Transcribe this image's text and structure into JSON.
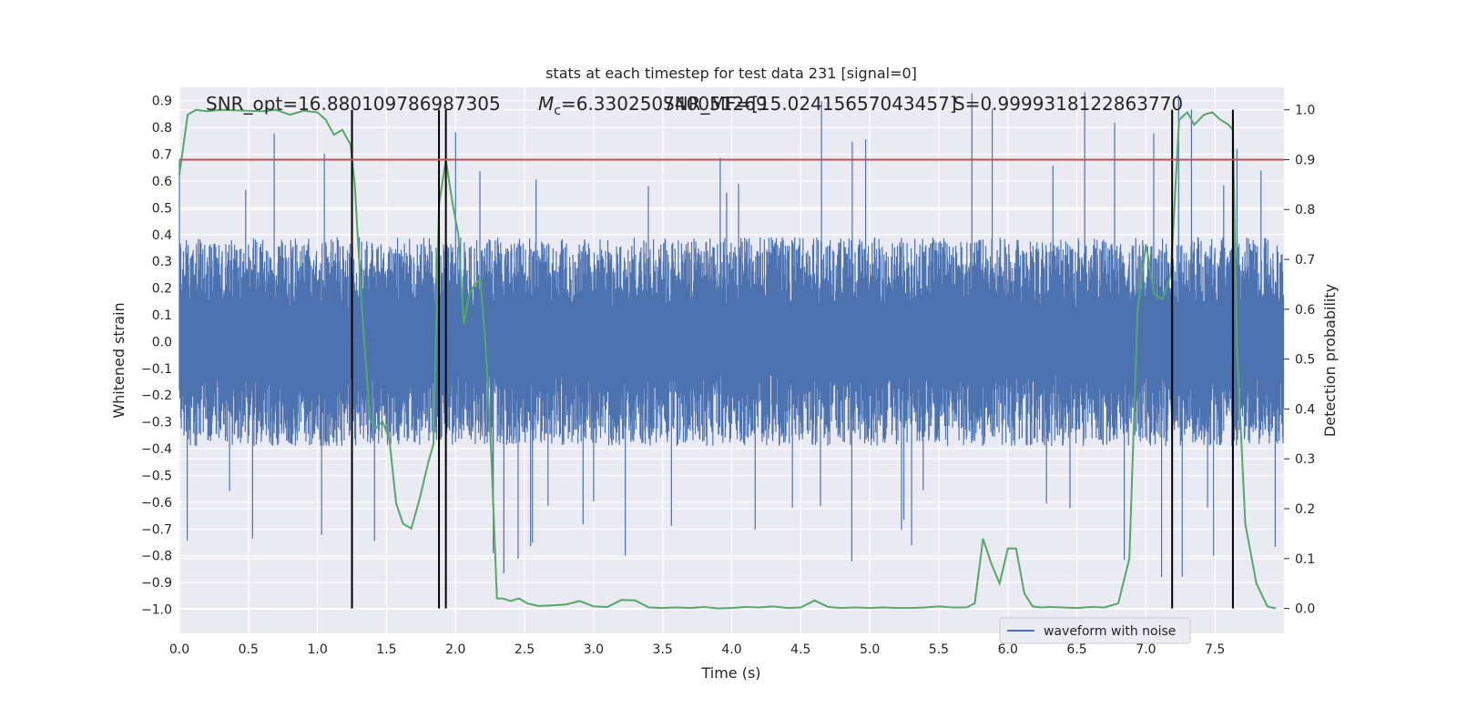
{
  "chart_data": {
    "type": "line",
    "title": "stats at each timestep for test data 231 [signal=0]",
    "xlabel": "Time (s)",
    "ylabel_left": "Whitened strain",
    "ylabel_right": "Detection probability",
    "xlim": [
      0,
      8
    ],
    "ylim_left": [
      -1.09,
      0.95
    ],
    "ylim_right": [
      -0.05,
      1.045
    ],
    "x_ticks": [
      0.0,
      0.5,
      1.0,
      1.5,
      2.0,
      2.5,
      3.0,
      3.5,
      4.0,
      4.5,
      5.0,
      5.5,
      6.0,
      6.5,
      7.0,
      7.5
    ],
    "x_tick_labels": [
      "0.0",
      "0.5",
      "1.0",
      "1.5",
      "2.0",
      "2.5",
      "3.0",
      "3.5",
      "4.0",
      "4.5",
      "5.0",
      "5.5",
      "6.0",
      "6.5",
      "7.0",
      "7.5"
    ],
    "y_left_ticks": [
      0.9,
      0.8,
      0.7,
      0.6,
      0.5,
      0.4,
      0.3,
      0.2,
      0.1,
      0.0,
      -0.1,
      -0.2,
      -0.3,
      -0.4,
      -0.5,
      -0.6,
      -0.7,
      -0.8,
      -0.9,
      -1.0
    ],
    "y_left_tick_labels": [
      "0.9",
      "0.8",
      "0.7",
      "0.6",
      "0.5",
      "0.4",
      "0.3",
      "0.2",
      "0.1",
      "0.0",
      "−0.1",
      "−0.2",
      "−0.3",
      "−0.4",
      "−0.5",
      "−0.6",
      "−0.7",
      "−0.8",
      "−0.9",
      "−1.0"
    ],
    "y_right_ticks": [
      1.0,
      0.9,
      0.8,
      0.7,
      0.6,
      0.5,
      0.4,
      0.3,
      0.2,
      0.1,
      0.0
    ],
    "y_right_tick_labels": [
      "1.0",
      "0.9",
      "0.8",
      "0.7",
      "0.6",
      "0.5",
      "0.4",
      "0.3",
      "0.2",
      "0.1",
      "0.0"
    ],
    "grid": true,
    "threshold": 0.9,
    "vertical_lines": [
      1.25,
      1.88,
      1.93,
      7.19,
      7.63
    ],
    "annotations": [
      {
        "text": "SNR_opt=16.880109786987305"
      },
      {
        "text": "Mc=6.330250740051269",
        "math_prefix": "M",
        "math_sub": "c",
        "rest": "=6.330250740051269"
      },
      {
        "text": "SNR_MF=[15.02415657043457]"
      },
      {
        "text": "S=0.9999318122863770"
      }
    ],
    "series": [
      {
        "name": "waveform with noise",
        "color": "#4c72b0",
        "kind": "noise",
        "duration": 8.0,
        "envelope": 0.3,
        "spike_extent": 0.95
      },
      {
        "color": "#55a868",
        "x": [
          0.0,
          0.06,
          0.12,
          0.2,
          0.3,
          0.4,
          0.5,
          0.6,
          0.7,
          0.8,
          0.9,
          1.0,
          1.06,
          1.12,
          1.18,
          1.24,
          1.27,
          1.32,
          1.38,
          1.42,
          1.47,
          1.52,
          1.57,
          1.62,
          1.68,
          1.74,
          1.8,
          1.84,
          1.88,
          1.93,
          1.98,
          2.02,
          2.06,
          2.1,
          2.14,
          2.18,
          2.22,
          2.26,
          2.3,
          2.34,
          2.4,
          2.46,
          2.52,
          2.6,
          2.7,
          2.8,
          2.9,
          3.0,
          3.1,
          3.2,
          3.3,
          3.4,
          3.5,
          3.6,
          3.7,
          3.8,
          3.9,
          4.0,
          4.1,
          4.2,
          4.3,
          4.4,
          4.5,
          4.6,
          4.7,
          4.8,
          4.9,
          5.0,
          5.1,
          5.2,
          5.3,
          5.4,
          5.5,
          5.6,
          5.7,
          5.76,
          5.82,
          5.88,
          5.94,
          6.0,
          6.06,
          6.12,
          6.18,
          6.24,
          6.3,
          6.4,
          6.5,
          6.6,
          6.7,
          6.8,
          6.88,
          6.94,
          7.0,
          7.06,
          7.12,
          7.18,
          7.24,
          7.3,
          7.35,
          7.42,
          7.48,
          7.54,
          7.6,
          7.63,
          7.66,
          7.72,
          7.8,
          7.88,
          7.94
        ],
        "values": [
          0.87,
          0.99,
          1.0,
          0.997,
          1.0,
          0.999,
          0.998,
          0.997,
          1.0,
          0.99,
          0.998,
          0.995,
          0.98,
          0.95,
          0.96,
          0.93,
          0.85,
          0.61,
          0.38,
          0.36,
          0.375,
          0.34,
          0.21,
          0.17,
          0.16,
          0.22,
          0.29,
          0.33,
          0.81,
          0.9,
          0.81,
          0.75,
          0.57,
          0.63,
          0.65,
          0.66,
          0.52,
          0.3,
          0.02,
          0.02,
          0.015,
          0.02,
          0.01,
          0.005,
          0.006,
          0.008,
          0.015,
          0.004,
          0.003,
          0.017,
          0.016,
          0.002,
          0.001,
          0.002,
          0.001,
          0.003,
          0.0,
          0.001,
          0.003,
          0.002,
          0.004,
          0.001,
          0.002,
          0.016,
          0.003,
          0.001,
          0.002,
          0.001,
          0.002,
          0.001,
          0.001,
          0.002,
          0.004,
          0.002,
          0.002,
          0.01,
          0.14,
          0.09,
          0.05,
          0.12,
          0.12,
          0.03,
          0.004,
          0.002,
          0.003,
          0.002,
          0.001,
          0.003,
          0.002,
          0.01,
          0.1,
          0.6,
          0.73,
          0.63,
          0.62,
          0.67,
          0.98,
          0.995,
          0.97,
          0.99,
          0.995,
          0.98,
          0.97,
          0.96,
          0.52,
          0.17,
          0.05,
          0.004,
          0.0
        ]
      }
    ],
    "legend": {
      "placement": "lower-right",
      "entries": [
        "waveform with noise"
      ]
    }
  }
}
